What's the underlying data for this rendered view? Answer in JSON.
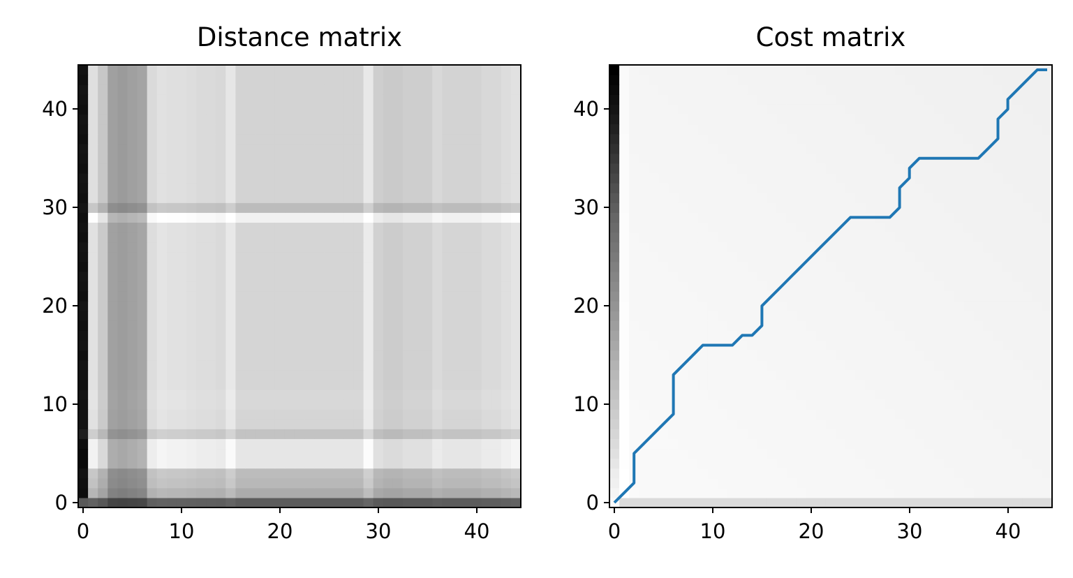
{
  "chart_data": [
    {
      "type": "heatmap",
      "title": "Distance matrix",
      "colormap": "gray",
      "origin": "lower",
      "matrix_size": [
        45,
        45
      ],
      "xlim": [
        -0.5,
        44.5
      ],
      "ylim": [
        -0.5,
        44.5
      ],
      "xticks": [
        0,
        10,
        20,
        30,
        40
      ],
      "yticks": [
        0,
        10,
        20,
        30,
        40
      ],
      "xtick_labels": [
        "0",
        "10",
        "20",
        "30",
        "40"
      ],
      "ytick_labels": [
        "0",
        "10",
        "20",
        "30",
        "40"
      ],
      "grid": false,
      "legend": "none",
      "column_intensity": [
        0.1,
        0.95,
        0.85,
        0.68,
        0.66,
        0.68,
        0.7,
        0.93,
        0.96,
        0.95,
        0.95,
        0.94,
        0.93,
        0.93,
        0.92,
        0.98,
        0.9,
        0.9,
        0.9,
        0.9,
        0.9,
        0.9,
        0.9,
        0.9,
        0.9,
        0.9,
        0.9,
        0.9,
        0.9,
        0.99,
        0.88,
        0.86,
        0.86,
        0.88,
        0.88,
        0.88,
        0.92,
        0.9,
        0.9,
        0.9,
        0.9,
        0.92,
        0.92,
        0.94,
        0.96
      ],
      "row_intensity": [
        0.4,
        0.75,
        0.8,
        0.82,
        1.0,
        1.0,
        1.0,
        0.85,
        0.93,
        0.93,
        0.94,
        0.94,
        0.93,
        0.93,
        0.93,
        0.93,
        0.93,
        0.93,
        0.93,
        0.93,
        0.93,
        0.93,
        0.93,
        0.93,
        0.93,
        0.93,
        0.93,
        0.93,
        0.93,
        1.05,
        0.82,
        0.92,
        0.92,
        0.92,
        0.92,
        0.92,
        0.92,
        0.92,
        0.92,
        0.92,
        0.92,
        0.92,
        0.92,
        0.92,
        0.92
      ],
      "first_column_values": [
        0.35,
        0.05,
        0.06,
        0.07,
        0.04,
        0.04,
        0.06,
        0.12,
        0.08,
        0.08,
        0.07,
        0.08,
        0.06,
        0.07,
        0.08,
        0.06,
        0.08,
        0.07,
        0.06,
        0.07,
        0.08,
        0.06,
        0.07,
        0.08,
        0.06,
        0.07,
        0.08,
        0.06,
        0.07,
        0.06,
        0.08,
        0.06,
        0.07,
        0.08,
        0.06,
        0.07,
        0.08,
        0.06,
        0.07,
        0.08,
        0.06,
        0.07,
        0.08,
        0.06,
        0.07
      ]
    },
    {
      "type": "heatmap",
      "title": "Cost matrix",
      "colormap": "gray",
      "origin": "lower",
      "matrix_size": [
        45,
        45
      ],
      "xlim": [
        -0.5,
        44.5
      ],
      "ylim": [
        -0.5,
        44.5
      ],
      "xticks": [
        0,
        10,
        20,
        30,
        40
      ],
      "yticks": [
        0,
        10,
        20,
        30,
        40
      ],
      "xtick_labels": [
        "0",
        "10",
        "20",
        "30",
        "40"
      ],
      "ytick_labels": [
        "0",
        "10",
        "20",
        "30",
        "40"
      ],
      "grid": false,
      "legend": "none",
      "background_intensity": 0.95,
      "bottom_row_intensity": 0.86,
      "first_column_values": [
        0.98,
        0.96,
        0.94,
        0.93,
        0.9,
        0.88,
        0.86,
        0.84,
        0.82,
        0.8,
        0.78,
        0.76,
        0.74,
        0.72,
        0.7,
        0.68,
        0.66,
        0.64,
        0.62,
        0.6,
        0.58,
        0.56,
        0.54,
        0.52,
        0.5,
        0.48,
        0.46,
        0.44,
        0.42,
        0.4,
        0.37,
        0.34,
        0.31,
        0.28,
        0.25,
        0.22,
        0.19,
        0.16,
        0.13,
        0.1,
        0.08,
        0.06,
        0.04,
        0.02,
        0.0
      ],
      "series": [
        {
          "color": "#1f77b4",
          "x": [
            0,
            1,
            2,
            2,
            3,
            4,
            5,
            6,
            6,
            7,
            8,
            9,
            10,
            11,
            12,
            13,
            14,
            15,
            15,
            16,
            17,
            18,
            19,
            20,
            21,
            22,
            23,
            24,
            25,
            26,
            27,
            28,
            29,
            29,
            30,
            30,
            31,
            32,
            33,
            34,
            35,
            36,
            37,
            38,
            39,
            39,
            40,
            40,
            41,
            42,
            43,
            44
          ],
          "y": [
            0,
            1,
            2,
            5,
            6,
            7,
            8,
            9,
            13,
            14,
            15,
            16,
            16,
            16,
            16,
            17,
            17,
            18,
            20,
            21,
            22,
            23,
            24,
            25,
            26,
            27,
            28,
            29,
            29,
            29,
            29,
            29,
            30,
            32,
            33,
            34,
            35,
            35,
            35,
            35,
            35,
            35,
            35,
            36,
            37,
            39,
            40,
            41,
            42,
            43,
            44,
            44
          ]
        }
      ]
    }
  ]
}
